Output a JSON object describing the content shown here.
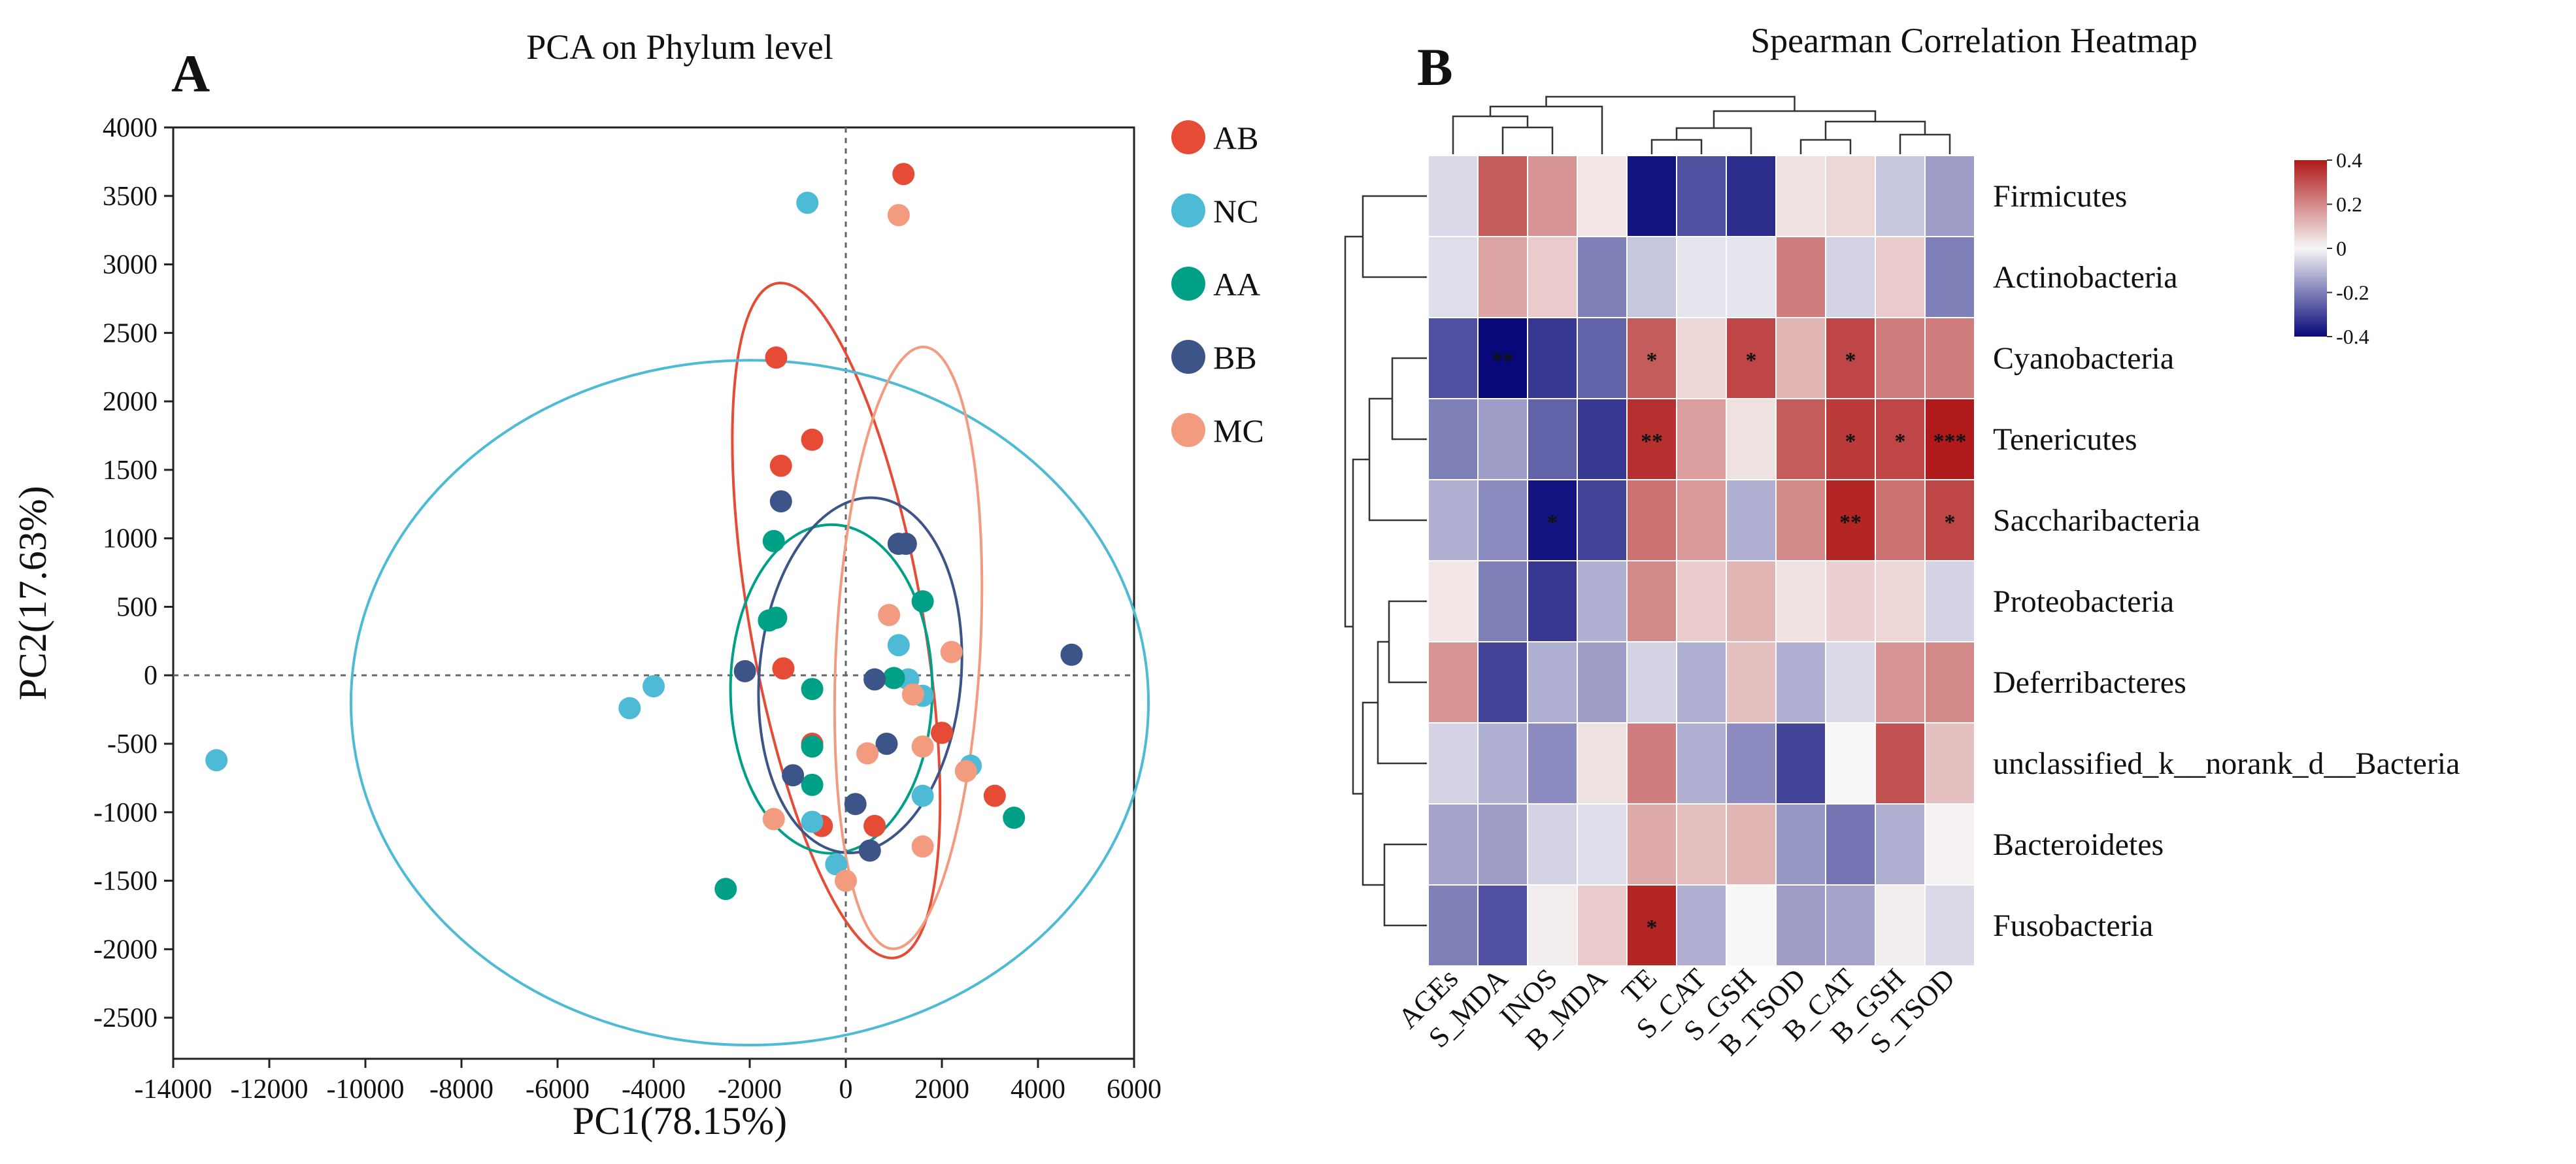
{
  "panels": {
    "a_letter": "A",
    "b_letter": "B"
  },
  "chart_data": [
    {
      "type": "scatter",
      "title": "PCA on Phylum level",
      "xlabel": "PC1(78.15%)",
      "ylabel": "PC2(17.63%)",
      "xlim": [
        -14000,
        6000
      ],
      "ylim": [
        -2800,
        4000
      ],
      "xticks": [
        -14000,
        -12000,
        -10000,
        -8000,
        -6000,
        -4000,
        -2000,
        0,
        2000,
        4000,
        6000
      ],
      "yticks": [
        4000,
        3500,
        3000,
        2500,
        2000,
        1500,
        1000,
        500,
        0,
        -500,
        -1000,
        -1500,
        -2000,
        -2500
      ],
      "grid": false,
      "legend_position": "right",
      "series": [
        {
          "name": "AB",
          "color": "#E64B35",
          "points": [
            [
              1200,
              3660
            ],
            [
              -1450,
              2320
            ],
            [
              -700,
              1720
            ],
            [
              -1350,
              1530
            ],
            [
              -1300,
              50
            ],
            [
              -700,
              -500
            ],
            [
              -500,
              -1100
            ],
            [
              600,
              -1100
            ],
            [
              2000,
              -420
            ],
            [
              3100,
              -880
            ]
          ],
          "ellipse": {
            "cx": -200,
            "cy": 400,
            "rx": 1800,
            "ry": 2500,
            "angle": -10
          }
        },
        {
          "name": "NC",
          "color": "#4DBBD5",
          "points": [
            [
              -13100,
              -620
            ],
            [
              -4500,
              -240
            ],
            [
              -4000,
              -80
            ],
            [
              -800,
              3450
            ],
            [
              1100,
              220
            ],
            [
              1300,
              -30
            ],
            [
              1600,
              -150
            ],
            [
              1600,
              -880
            ],
            [
              2600,
              -660
            ],
            [
              -700,
              -1070
            ],
            [
              -200,
              -1380
            ]
          ],
          "ellipse": {
            "cx": -2000,
            "cy": -200,
            "rx": 8300,
            "ry": 2500,
            "angle": 0
          }
        },
        {
          "name": "AA",
          "color": "#00A087",
          "points": [
            [
              -1500,
              980
            ],
            [
              -1600,
              400
            ],
            [
              -1450,
              420
            ],
            [
              -700,
              -100
            ],
            [
              -700,
              -520
            ],
            [
              -700,
              -800
            ],
            [
              1000,
              -20
            ],
            [
              1600,
              540
            ],
            [
              3500,
              -1040
            ],
            [
              -2500,
              -1560
            ]
          ],
          "ellipse": {
            "cx": -300,
            "cy": -100,
            "rx": 2100,
            "ry": 1200,
            "angle": 0
          }
        },
        {
          "name": "BB",
          "color": "#3C5488",
          "points": [
            [
              -1350,
              1270
            ],
            [
              -2100,
              30
            ],
            [
              1100,
              960
            ],
            [
              1250,
              960
            ],
            [
              600,
              -30
            ],
            [
              850,
              -500
            ],
            [
              -1100,
              -730
            ],
            [
              200,
              -940
            ],
            [
              500,
              -1280
            ],
            [
              4700,
              150
            ]
          ],
          "ellipse": {
            "cx": 300,
            "cy": 0,
            "rx": 2100,
            "ry": 1300,
            "angle": 5
          }
        },
        {
          "name": "MC",
          "color": "#F39B7F",
          "points": [
            [
              1100,
              3360
            ],
            [
              900,
              440
            ],
            [
              2200,
              170
            ],
            [
              1400,
              -140
            ],
            [
              1600,
              -520
            ],
            [
              2500,
              -700
            ],
            [
              450,
              -570
            ],
            [
              1600,
              -1250
            ],
            [
              -1500,
              -1050
            ],
            [
              0,
              -1500
            ]
          ],
          "ellipse": {
            "cx": 1300,
            "cy": 200,
            "rx": 1500,
            "ry": 2200,
            "angle": 3
          }
        }
      ]
    },
    {
      "type": "heatmap",
      "title": "Spearman Correlation Heatmap",
      "columns": [
        "AGEs",
        "S_MDA",
        "INOS",
        "B_MDA",
        "TE",
        "S_CAT",
        "S_GSH",
        "B_TSOD",
        "B_CAT",
        "B_GSH",
        "S_TSOD"
      ],
      "rows": [
        "Firmicutes",
        "Actinobacteria",
        "Cyanobacteria",
        "Tenericutes",
        "Saccharibacteria",
        "Proteobacteria",
        "Deferribacteres",
        "unclassified_k__norank_d__Bacteria",
        "Bacteroidetes",
        "Fusobacteria"
      ],
      "values": [
        [
          -0.05,
          0.28,
          0.18,
          0.03,
          -0.38,
          -0.28,
          -0.34,
          0.04,
          0.06,
          -0.08,
          -0.15
        ],
        [
          -0.04,
          0.15,
          0.08,
          -0.2,
          -0.08,
          -0.03,
          -0.03,
          0.22,
          -0.06,
          0.08,
          -0.2
        ],
        [
          -0.28,
          -0.42,
          -0.32,
          -0.25,
          0.28,
          0.06,
          0.32,
          0.12,
          0.32,
          0.22,
          0.22
        ],
        [
          -0.2,
          -0.15,
          -0.25,
          -0.32,
          0.36,
          0.16,
          0.04,
          0.28,
          0.34,
          0.32,
          0.45
        ],
        [
          -0.12,
          -0.18,
          -0.38,
          -0.3,
          0.24,
          0.17,
          -0.12,
          0.2,
          0.38,
          0.24,
          0.32
        ],
        [
          0.03,
          -0.2,
          -0.32,
          -0.12,
          0.2,
          0.08,
          0.12,
          0.04,
          0.07,
          0.06,
          -0.06
        ],
        [
          0.18,
          -0.3,
          -0.12,
          -0.15,
          -0.06,
          -0.12,
          0.1,
          -0.12,
          -0.05,
          0.18,
          0.2
        ],
        [
          -0.06,
          -0.12,
          -0.18,
          0.04,
          0.22,
          -0.12,
          -0.18,
          -0.3,
          0.0,
          0.3,
          0.1
        ],
        [
          -0.14,
          -0.15,
          -0.06,
          -0.04,
          0.14,
          0.1,
          0.12,
          -0.16,
          -0.22,
          -0.12,
          0.01
        ],
        [
          -0.2,
          -0.28,
          0.02,
          0.08,
          0.38,
          -0.12,
          0.0,
          -0.15,
          -0.14,
          0.02,
          -0.05
        ]
      ],
      "significance": [
        [
          "",
          "",
          "",
          "",
          "",
          "",
          "",
          "",
          "",
          "",
          ""
        ],
        [
          "",
          "",
          "",
          "",
          "",
          "",
          "",
          "",
          "",
          "",
          ""
        ],
        [
          "",
          "**",
          "",
          "",
          "*",
          "",
          "*",
          "",
          "*",
          "",
          ""
        ],
        [
          "",
          "",
          "",
          "",
          "**",
          "",
          "",
          "",
          "*",
          "*",
          "***"
        ],
        [
          "",
          "",
          "*",
          "",
          "",
          "",
          "",
          "",
          "**",
          "",
          "*"
        ],
        [
          "",
          "",
          "",
          "",
          "",
          "",
          "",
          "",
          "",
          "",
          ""
        ],
        [
          "",
          "",
          "",
          "",
          "",
          "",
          "",
          "",
          "",
          "",
          ""
        ],
        [
          "",
          "",
          "",
          "",
          "",
          "",
          "",
          "",
          "",
          "",
          ""
        ],
        [
          "",
          "",
          "",
          "",
          "",
          "",
          "",
          "",
          "",
          "",
          ""
        ],
        [
          "",
          "",
          "",
          "",
          "*",
          "",
          "",
          "",
          "",
          "",
          ""
        ]
      ],
      "color_scale": {
        "min": -0.4,
        "max": 0.4,
        "low_color": "#08087a",
        "mid_color": "#f7f7f7",
        "high_color": "#b01a1a",
        "ticks": [
          0.4,
          0.2,
          0,
          -0.2,
          -0.4
        ],
        "tick_labels": [
          "0.4",
          "0.2",
          "0",
          "-0.2",
          "-0.4"
        ]
      },
      "dendrograms": {
        "rows": true,
        "columns": true
      }
    }
  ]
}
